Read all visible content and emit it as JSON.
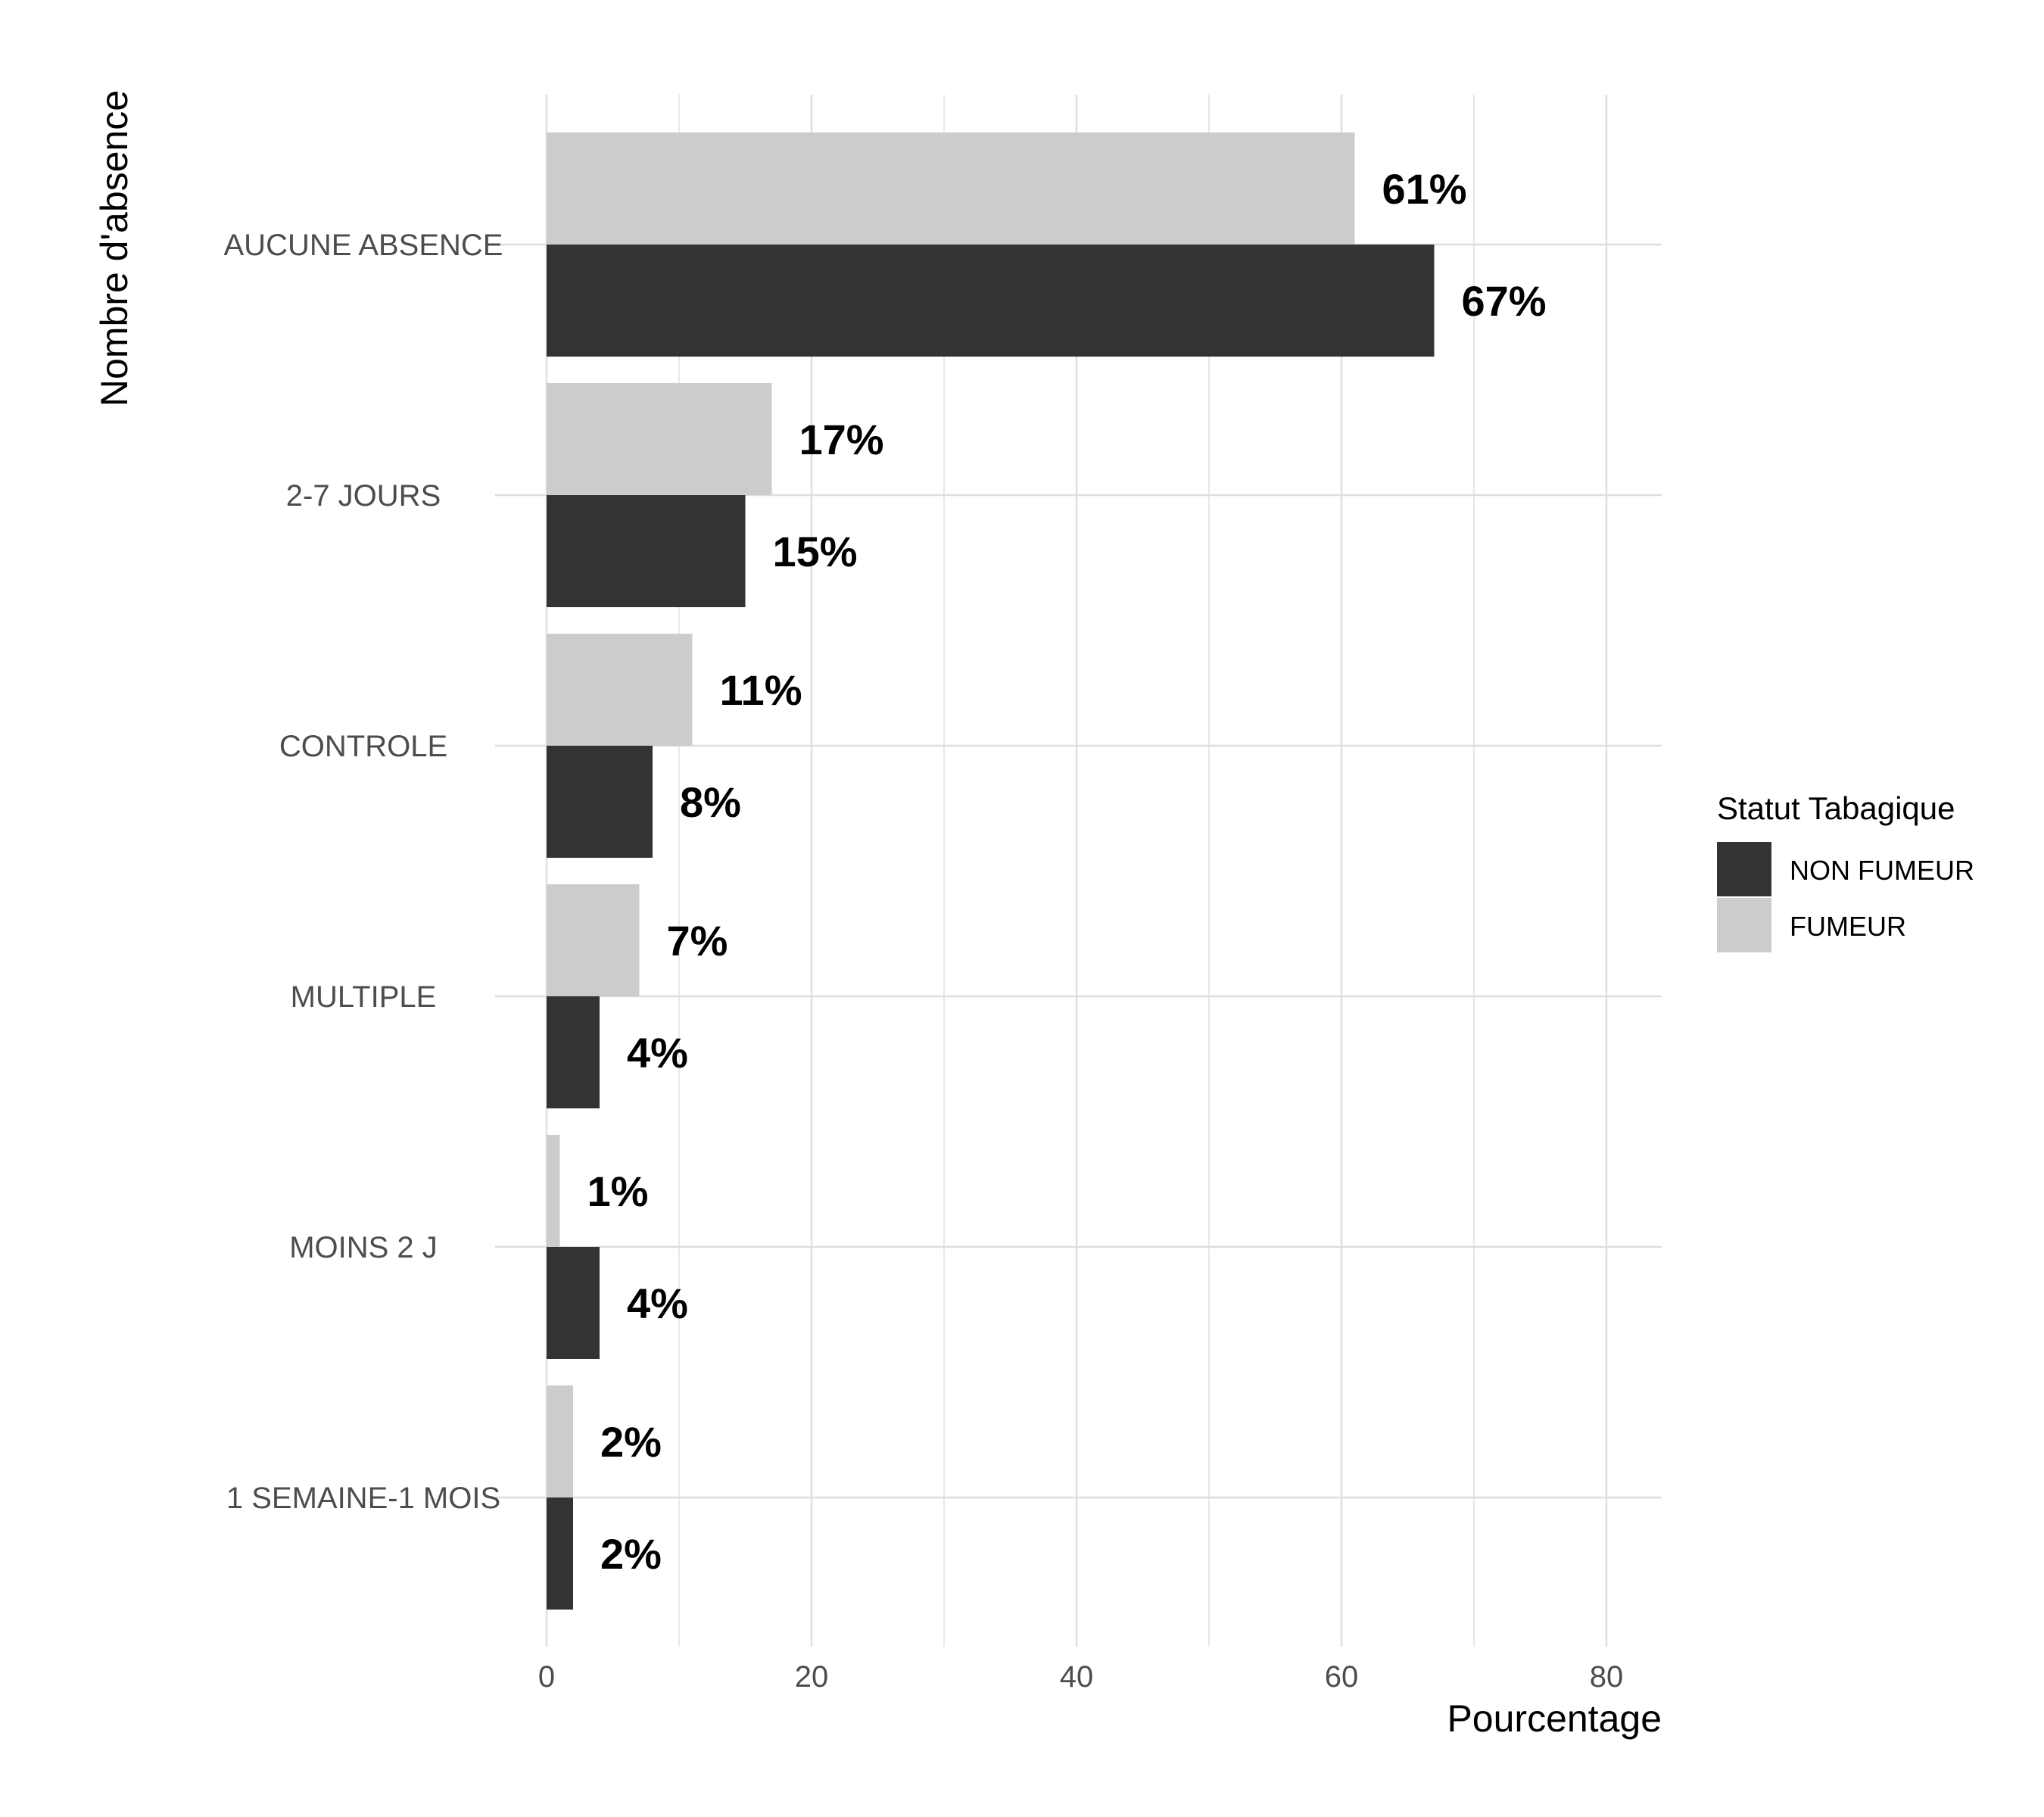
{
  "chart_data": {
    "type": "bar",
    "orientation": "horizontal",
    "title": "",
    "xlabel": "Pourcentage",
    "ylabel": "Nombre d'absence",
    "xlim": [
      0,
      84
    ],
    "xticks": [
      0,
      20,
      40,
      60,
      80
    ],
    "grid": true,
    "legend_position": "right",
    "legend_title": "Statut Tabagique",
    "categories": [
      "AUCUNE ABSENCE",
      "2-7 JOURS",
      "CONTROLE",
      "MULTIPLE",
      "MOINS  2 J",
      "1 SEMAINE-1 MOIS"
    ],
    "series": [
      {
        "name": "NON FUMEUR",
        "color": "#333333",
        "values": [
          67,
          15,
          8,
          4,
          4,
          2
        ],
        "labels": [
          "67%",
          "15%",
          "8%",
          "4%",
          "4%",
          "2%"
        ]
      },
      {
        "name": "FUMEUR",
        "color": "#cccccc",
        "values": [
          61,
          17,
          11,
          7,
          1,
          2
        ],
        "labels": [
          "61%",
          "17%",
          "11%",
          "7%",
          "1%",
          "2%"
        ]
      }
    ]
  }
}
